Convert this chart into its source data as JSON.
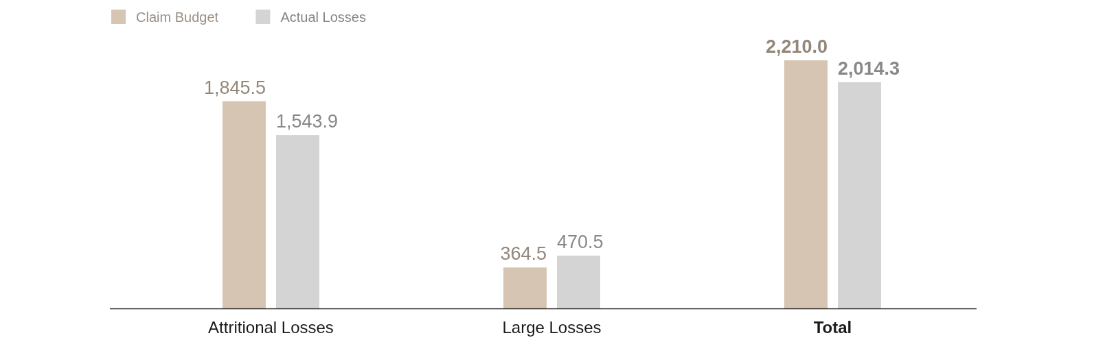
{
  "chart_data": {
    "type": "bar",
    "categories": [
      "Attritional Losses",
      "Large Losses",
      "Total"
    ],
    "series": [
      {
        "name": "Claim Budget",
        "color": "#d6c5b2",
        "values": [
          1845.5,
          364.5,
          2210.0
        ],
        "value_labels": [
          "1,845.5",
          "364.5",
          "2,210.0"
        ]
      },
      {
        "name": "Actual Losses",
        "color": "#d3d4d3",
        "values": [
          1543.9,
          470.5,
          2014.3
        ],
        "value_labels": [
          "1,543.9",
          "470.5",
          "2,014.3"
        ]
      }
    ],
    "legend": "top left"
  }
}
